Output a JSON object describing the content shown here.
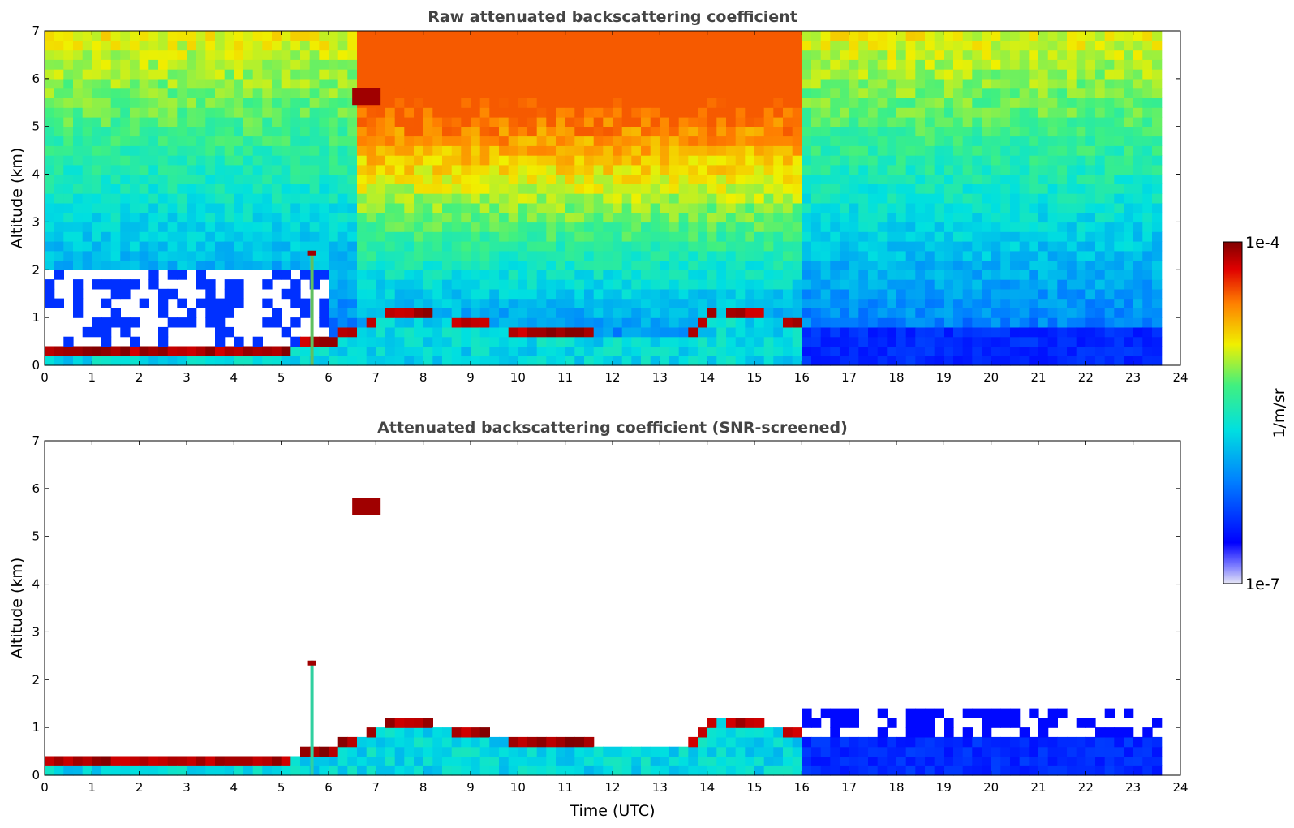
{
  "chart_data": [
    {
      "type": "heatmap",
      "title": "Raw attenuated backscattering coefficient",
      "xlabel": "",
      "ylabel": "Altitude (km)",
      "xlim": [
        0,
        24
      ],
      "ylim": [
        0,
        7
      ],
      "xticks": [
        "0",
        "1",
        "2",
        "3",
        "4",
        "5",
        "6",
        "7",
        "8",
        "9",
        "10",
        "11",
        "12",
        "13",
        "14",
        "15",
        "16",
        "17",
        "18",
        "19",
        "20",
        "21",
        "22",
        "23",
        "24"
      ],
      "yticks": [
        "0",
        "1",
        "2",
        "3",
        "4",
        "5",
        "6",
        "7"
      ],
      "data_end_hour": 23.6,
      "boundary_layer_top_km": [
        {
          "t": 0,
          "z": 0.25
        },
        {
          "t": 2,
          "z": 0.22
        },
        {
          "t": 4,
          "z": 0.25
        },
        {
          "t": 5,
          "z": 0.32
        },
        {
          "t": 6,
          "z": 0.55
        },
        {
          "t": 6.4,
          "z": 0.65
        },
        {
          "t": 7.3,
          "z": 1.1
        },
        {
          "t": 8.5,
          "z": 1.0
        },
        {
          "t": 9.2,
          "z": 0.85
        },
        {
          "t": 10.5,
          "z": 0.7
        },
        {
          "t": 12,
          "z": 0.6
        },
        {
          "t": 13.6,
          "z": 0.6
        },
        {
          "t": 14.2,
          "z": 1.2
        },
        {
          "t": 15,
          "z": 1.05
        },
        {
          "t": 16,
          "z": 0.95
        }
      ],
      "features": [
        {
          "name": "elevated aerosol layer",
          "t_start": 6.5,
          "t_end": 7.1,
          "z_top": 5.8,
          "z_bottom": 5.45
        },
        {
          "name": "plume column",
          "t": 5.65,
          "z_top": 2.4
        }
      ]
    },
    {
      "type": "heatmap",
      "title": "Attenuated backscattering coefficient (SNR-screened)",
      "xlabel": "Time (UTC)",
      "ylabel": "Altitude (km)",
      "xlim": [
        0,
        24
      ],
      "ylim": [
        0,
        7
      ],
      "xticks": [
        "0",
        "1",
        "2",
        "3",
        "4",
        "5",
        "6",
        "7",
        "8",
        "9",
        "10",
        "11",
        "12",
        "13",
        "14",
        "15",
        "16",
        "17",
        "18",
        "19",
        "20",
        "21",
        "22",
        "23",
        "24"
      ],
      "yticks": [
        "0",
        "1",
        "2",
        "3",
        "4",
        "5",
        "6",
        "7"
      ]
    }
  ],
  "colorbar": {
    "max_label": "1e-4",
    "min_label": "1e-7",
    "unit_label": "1/m/sr",
    "colors": [
      "#e6e6f5",
      "#0000ff",
      "#00b0ff",
      "#30e0c0",
      "#f0f000",
      "#ff8000",
      "#e00000",
      "#800000"
    ]
  }
}
